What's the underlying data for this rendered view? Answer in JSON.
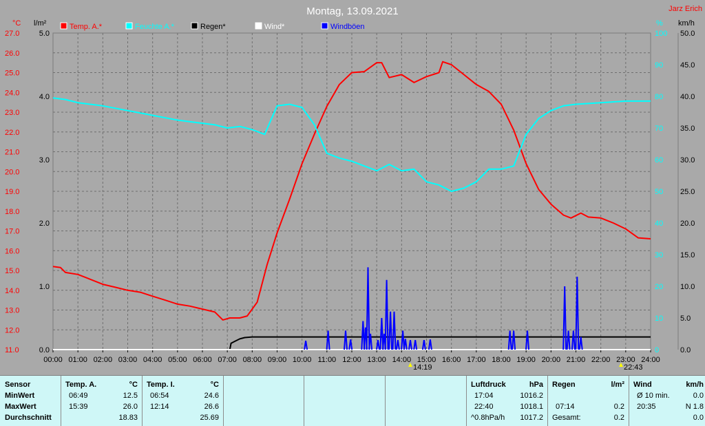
{
  "header": {
    "title": "Montag, 13.09.2021",
    "author": "Jarz Erich",
    "unit_temp": "°C",
    "unit_rain": "l/m²",
    "unit_hum": "%",
    "unit_wind": "km/h"
  },
  "legend": [
    {
      "label": "Temp. A.*",
      "color": "#ff0000"
    },
    {
      "label": "Feuchte A.*",
      "color": "#00ffff"
    },
    {
      "label": "Regen*",
      "color": "#000000"
    },
    {
      "label": "Wind*",
      "color": "#ffffff"
    },
    {
      "label": "Windböen",
      "color": "#0000ff"
    }
  ],
  "markers": {
    "m1": "14:19",
    "m2": "22:43"
  },
  "chart_data": {
    "type": "line",
    "title": "Montag, 13.09.2021",
    "x_ticks": [
      "00:00",
      "01:00",
      "02:00",
      "03:00",
      "04:00",
      "05:00",
      "06:00",
      "07:00",
      "08:00",
      "09:00",
      "10:00",
      "11:00",
      "12:00",
      "13:00",
      "14:00",
      "15:00",
      "16:00",
      "17:00",
      "18:00",
      "19:00",
      "20:00",
      "21:00",
      "22:00",
      "23:00",
      "24:00"
    ],
    "temp_axis": {
      "unit": "°C",
      "range": [
        11.0,
        27.0
      ],
      "ticks": [
        "27.0",
        "26.0",
        "25.0",
        "24.0",
        "23.0",
        "22.0",
        "21.0",
        "20.0",
        "19.0",
        "18.0",
        "17.0",
        "16.0",
        "15.0",
        "14.0",
        "13.0",
        "12.0",
        "11.0"
      ]
    },
    "rain_axis": {
      "unit": "l/m²",
      "range": [
        0.0,
        5.0
      ],
      "ticks": [
        "5.0",
        "4.0",
        "3.0",
        "2.0",
        "1.0",
        "0.0"
      ]
    },
    "hum_axis": {
      "unit": "%",
      "range": [
        0,
        100
      ],
      "ticks": [
        "100",
        "90",
        "80",
        "70",
        "60",
        "50",
        "40",
        "30",
        "20",
        "10",
        "0"
      ]
    },
    "wind_axis": {
      "unit": "km/h",
      "range": [
        0.0,
        50.0
      ],
      "ticks": [
        "50.0",
        "45.0",
        "40.0",
        "35.0",
        "30.0",
        "25.0",
        "20.0",
        "15.0",
        "10.0",
        "5.0",
        "0.0"
      ]
    },
    "series": [
      {
        "name": "Temp. A.*",
        "color": "#ff0000",
        "axis": "temp",
        "points": [
          [
            0,
            15.2
          ],
          [
            0.3,
            15.15
          ],
          [
            0.5,
            14.9
          ],
          [
            1,
            14.8
          ],
          [
            1.5,
            14.55
          ],
          [
            2,
            14.3
          ],
          [
            2.5,
            14.15
          ],
          [
            3,
            14.0
          ],
          [
            3.5,
            13.9
          ],
          [
            4,
            13.7
          ],
          [
            4.5,
            13.5
          ],
          [
            5,
            13.3
          ],
          [
            5.5,
            13.2
          ],
          [
            6,
            13.05
          ],
          [
            6.5,
            12.9
          ],
          [
            6.82,
            12.5
          ],
          [
            7.1,
            12.6
          ],
          [
            7.5,
            12.6
          ],
          [
            7.8,
            12.7
          ],
          [
            8.2,
            13.4
          ],
          [
            8.6,
            15.3
          ],
          [
            9,
            16.9
          ],
          [
            9.5,
            18.6
          ],
          [
            10,
            20.4
          ],
          [
            10.5,
            21.9
          ],
          [
            11,
            23.3
          ],
          [
            11.5,
            24.4
          ],
          [
            12,
            25.0
          ],
          [
            12.5,
            25.05
          ],
          [
            13,
            25.5
          ],
          [
            13.2,
            25.5
          ],
          [
            13.5,
            24.75
          ],
          [
            14,
            24.9
          ],
          [
            14.5,
            24.5
          ],
          [
            15,
            24.8
          ],
          [
            15.5,
            25.0
          ],
          [
            15.65,
            25.55
          ],
          [
            16,
            25.4
          ],
          [
            16.5,
            24.9
          ],
          [
            17,
            24.4
          ],
          [
            17.5,
            24.05
          ],
          [
            18,
            23.4
          ],
          [
            18.5,
            22.1
          ],
          [
            19,
            20.4
          ],
          [
            19.5,
            19.1
          ],
          [
            20,
            18.35
          ],
          [
            20.5,
            17.8
          ],
          [
            20.8,
            17.65
          ],
          [
            21.2,
            17.9
          ],
          [
            21.5,
            17.7
          ],
          [
            22,
            17.65
          ],
          [
            22.5,
            17.4
          ],
          [
            23,
            17.1
          ],
          [
            23.5,
            16.65
          ],
          [
            24,
            16.6
          ]
        ]
      },
      {
        "name": "Feuchte A.*",
        "color": "#00ffff",
        "axis": "hum",
        "points": [
          [
            0,
            79.5
          ],
          [
            0.5,
            79
          ],
          [
            1,
            78
          ],
          [
            2,
            77
          ],
          [
            3,
            75.5
          ],
          [
            4,
            74
          ],
          [
            5,
            72.5
          ],
          [
            6,
            71.5
          ],
          [
            6.5,
            71
          ],
          [
            7,
            70
          ],
          [
            7.5,
            70.5
          ],
          [
            8,
            69.5
          ],
          [
            8.5,
            68
          ],
          [
            9,
            77
          ],
          [
            9.5,
            77.5
          ],
          [
            10,
            76.5
          ],
          [
            10.5,
            71
          ],
          [
            11,
            62
          ],
          [
            11.5,
            60.5
          ],
          [
            12,
            59.5
          ],
          [
            12.5,
            58
          ],
          [
            13,
            56.5
          ],
          [
            13.5,
            58.5
          ],
          [
            14,
            56.5
          ],
          [
            14.5,
            57
          ],
          [
            15,
            53
          ],
          [
            15.5,
            52
          ],
          [
            16,
            50
          ],
          [
            16.5,
            51
          ],
          [
            17,
            53
          ],
          [
            17.5,
            57
          ],
          [
            18,
            57
          ],
          [
            18.5,
            58
          ],
          [
            19,
            68
          ],
          [
            19.5,
            73
          ],
          [
            20,
            75.5
          ],
          [
            20.5,
            77
          ],
          [
            21,
            77.5
          ],
          [
            22,
            78
          ],
          [
            23,
            78.5
          ],
          [
            24,
            78.5
          ]
        ]
      },
      {
        "name": "Regen*",
        "color": "#000000",
        "axis": "rain",
        "points": [
          [
            0,
            0
          ],
          [
            7.1,
            0
          ],
          [
            7.15,
            0.1
          ],
          [
            7.2,
            0.11
          ],
          [
            7.3,
            0.13
          ],
          [
            7.5,
            0.17
          ],
          [
            7.7,
            0.19
          ],
          [
            8,
            0.2
          ],
          [
            24,
            0.2
          ]
        ]
      },
      {
        "name": "Wind*",
        "color": "#ffffff",
        "axis": "wind",
        "points": [
          [
            0,
            0
          ],
          [
            24,
            0
          ]
        ]
      },
      {
        "name": "Windböen",
        "color": "#0000ff",
        "axis": "wind",
        "spikes": [
          [
            10.15,
            1.4
          ],
          [
            11.05,
            3.0
          ],
          [
            11.75,
            3.0
          ],
          [
            11.95,
            1.6
          ],
          [
            12.45,
            4.5
          ],
          [
            12.55,
            3.5
          ],
          [
            12.65,
            13.0
          ],
          [
            12.75,
            2.5
          ],
          [
            13.05,
            1.5
          ],
          [
            13.2,
            5.0
          ],
          [
            13.3,
            2.5
          ],
          [
            13.4,
            11.0
          ],
          [
            13.55,
            6.0
          ],
          [
            13.7,
            6.0
          ],
          [
            13.85,
            1.5
          ],
          [
            14.05,
            3.0
          ],
          [
            14.15,
            1.7
          ],
          [
            14.35,
            1.5
          ],
          [
            14.55,
            1.5
          ],
          [
            14.9,
            1.5
          ],
          [
            15.15,
            1.6
          ],
          [
            18.35,
            3.0
          ],
          [
            18.5,
            3.0
          ],
          [
            19.05,
            3.0
          ],
          [
            20.55,
            10.0
          ],
          [
            20.7,
            3.0
          ],
          [
            20.9,
            3.0
          ],
          [
            21.05,
            11.5
          ],
          [
            21.2,
            2.0
          ]
        ]
      }
    ]
  },
  "stats": {
    "sensor": {
      "h_sensor": "Sensor",
      "min": "MinWert",
      "max": "MaxWert",
      "avg": "Durchschnitt"
    },
    "temp_a": {
      "h": "Temp. A.",
      "u": "°C",
      "min_t": "06:49",
      "min_v": "12.5",
      "max_t": "15:39",
      "max_v": "26.0",
      "avg": "18.83"
    },
    "temp_i": {
      "h": "Temp. I.",
      "u": "°C",
      "min_t": "06:54",
      "min_v": "24.6",
      "max_t": "12:14",
      "max_v": "26.6",
      "avg": "25.69"
    },
    "pressure": {
      "h": "Luftdruck",
      "u": "hPa",
      "min_t": "17:04",
      "min_v": "1016.2",
      "max_t": "22:40",
      "max_v": "1018.1",
      "trend": "^0.8hPa/h",
      "avg": "1017.2"
    },
    "rain": {
      "h": "Regen",
      "u": "l/m²",
      "max_t": "07:14",
      "max_v": "0.2",
      "total_label": "Gesamt:",
      "total": "0.2"
    },
    "wind": {
      "h": "Wind",
      "u": "km/h",
      "min_label": "Ø 10 min.",
      "min_v": "0.0",
      "max_t": "20:35",
      "max_v": "N 1.8",
      "avg": "0.0"
    }
  }
}
